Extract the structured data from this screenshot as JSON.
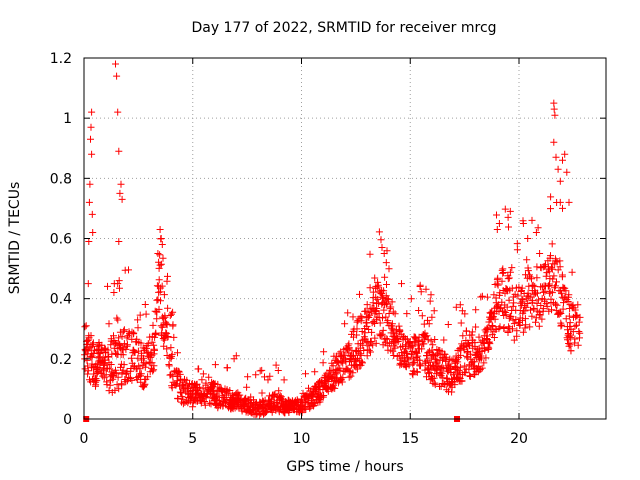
{
  "chart_data": {
    "type": "scatter",
    "title": "Day 177 of 2022, SRMTID for receiver mrcg",
    "xlabel": "GPS time / hours",
    "ylabel": "SRMTID / TECUs",
    "xlim": [
      0,
      24
    ],
    "ylim": [
      0,
      1.2
    ],
    "xticks": [
      0,
      5,
      10,
      15,
      20
    ],
    "xtick_labels": [
      "0",
      "5",
      "10",
      "15",
      "20"
    ],
    "yticks": [
      0,
      0.2,
      0.4,
      0.6,
      0.8,
      1,
      1.2
    ],
    "ytick_labels": [
      "0",
      "0.2",
      "0.4",
      "0.6",
      "0.8",
      "1",
      "1.2"
    ],
    "grid": true,
    "marker": "+",
    "color": "#ff0000",
    "gap_markers_x": [
      0.1,
      17.15
    ],
    "envelope": [
      [
        0.0,
        0.12,
        0.24,
        0.2
      ],
      [
        0.3,
        0.12,
        0.3,
        0.45
      ],
      [
        0.5,
        0.1,
        0.26,
        0.3
      ],
      [
        0.8,
        0.14,
        0.25,
        0.2
      ],
      [
        1.1,
        0.1,
        0.24,
        0.2
      ],
      [
        1.3,
        0.06,
        0.28,
        0.3
      ],
      [
        1.6,
        0.1,
        0.3,
        0.25
      ],
      [
        2.0,
        0.12,
        0.3,
        0.2
      ],
      [
        2.4,
        0.12,
        0.28,
        0.2
      ],
      [
        2.8,
        0.1,
        0.24,
        0.2
      ],
      [
        3.2,
        0.16,
        0.32,
        0.2
      ],
      [
        3.5,
        0.28,
        0.55,
        0.2
      ],
      [
        3.8,
        0.2,
        0.35,
        0.15
      ],
      [
        4.1,
        0.08,
        0.2,
        0.15
      ],
      [
        4.5,
        0.05,
        0.14,
        0.1
      ],
      [
        5.0,
        0.04,
        0.12,
        0.1
      ],
      [
        5.5,
        0.04,
        0.13,
        0.1
      ],
      [
        6.0,
        0.04,
        0.12,
        0.1
      ],
      [
        6.5,
        0.03,
        0.1,
        0.1
      ],
      [
        7.0,
        0.03,
        0.09,
        0.1
      ],
      [
        7.5,
        0.02,
        0.07,
        0.1
      ],
      [
        8.0,
        0.01,
        0.06,
        0.1
      ],
      [
        8.5,
        0.02,
        0.08,
        0.1
      ],
      [
        9.0,
        0.02,
        0.08,
        0.1
      ],
      [
        9.5,
        0.02,
        0.06,
        0.1
      ],
      [
        10.0,
        0.02,
        0.07,
        0.1
      ],
      [
        10.5,
        0.04,
        0.1,
        0.1
      ],
      [
        11.0,
        0.06,
        0.14,
        0.1
      ],
      [
        11.5,
        0.1,
        0.2,
        0.1
      ],
      [
        12.0,
        0.12,
        0.24,
        0.1
      ],
      [
        12.5,
        0.16,
        0.32,
        0.1
      ],
      [
        13.0,
        0.2,
        0.38,
        0.15
      ],
      [
        13.5,
        0.26,
        0.46,
        0.2
      ],
      [
        14.0,
        0.22,
        0.4,
        0.15
      ],
      [
        14.5,
        0.18,
        0.32,
        0.15
      ],
      [
        15.0,
        0.14,
        0.26,
        0.15
      ],
      [
        15.5,
        0.16,
        0.3,
        0.15
      ],
      [
        16.0,
        0.12,
        0.26,
        0.15
      ],
      [
        16.5,
        0.1,
        0.22,
        0.15
      ],
      [
        17.0,
        0.08,
        0.2,
        0.15
      ],
      [
        17.5,
        0.14,
        0.3,
        0.15
      ],
      [
        18.0,
        0.14,
        0.26,
        0.15
      ],
      [
        18.5,
        0.18,
        0.3,
        0.15
      ],
      [
        19.0,
        0.3,
        0.5,
        0.2
      ],
      [
        19.5,
        0.28,
        0.5,
        0.2
      ],
      [
        20.0,
        0.24,
        0.44,
        0.2
      ],
      [
        20.5,
        0.3,
        0.52,
        0.2
      ],
      [
        21.0,
        0.3,
        0.5,
        0.2
      ],
      [
        21.5,
        0.36,
        0.6,
        0.25
      ],
      [
        22.0,
        0.3,
        0.52,
        0.25
      ],
      [
        22.4,
        0.22,
        0.38,
        0.2
      ],
      [
        22.8,
        0.24,
        0.38,
        0.15
      ]
    ],
    "outliers": [
      [
        0.1,
        0.31
      ],
      [
        0.15,
        0.26
      ],
      [
        0.2,
        0.45
      ],
      [
        0.22,
        0.59
      ],
      [
        0.25,
        0.72
      ],
      [
        0.27,
        0.78
      ],
      [
        0.3,
        0.93
      ],
      [
        0.32,
        0.97
      ],
      [
        0.35,
        1.02
      ],
      [
        0.35,
        0.88
      ],
      [
        0.38,
        0.68
      ],
      [
        0.4,
        0.62
      ],
      [
        1.45,
        1.18
      ],
      [
        1.5,
        1.14
      ],
      [
        1.55,
        1.02
      ],
      [
        1.6,
        0.89
      ],
      [
        1.65,
        0.75
      ],
      [
        1.7,
        0.78
      ],
      [
        1.75,
        0.73
      ],
      [
        1.6,
        0.59
      ],
      [
        1.55,
        0.45
      ],
      [
        1.62,
        0.46
      ],
      [
        3.5,
        0.63
      ],
      [
        3.55,
        0.6
      ],
      [
        3.6,
        0.58
      ],
      [
        3.4,
        0.55
      ],
      [
        6.9,
        0.2
      ],
      [
        7.0,
        0.21
      ],
      [
        8.1,
        0.16
      ],
      [
        8.3,
        0.14
      ],
      [
        9.2,
        0.13
      ],
      [
        13.7,
        0.57
      ],
      [
        13.8,
        0.55
      ],
      [
        13.9,
        0.52
      ],
      [
        14.6,
        0.45
      ],
      [
        16.1,
        0.36
      ],
      [
        17.3,
        0.38
      ],
      [
        17.4,
        0.36
      ],
      [
        19.0,
        0.63
      ],
      [
        19.1,
        0.65
      ],
      [
        19.5,
        0.67
      ],
      [
        19.6,
        0.69
      ],
      [
        20.2,
        0.65
      ],
      [
        20.4,
        0.6
      ],
      [
        20.6,
        0.66
      ],
      [
        20.8,
        0.62
      ],
      [
        21.6,
        1.05
      ],
      [
        21.62,
        1.03
      ],
      [
        21.65,
        1.01
      ],
      [
        21.6,
        0.92
      ],
      [
        21.7,
        0.87
      ],
      [
        21.8,
        0.83
      ],
      [
        21.9,
        0.79
      ],
      [
        22.0,
        0.86
      ],
      [
        22.1,
        0.88
      ],
      [
        22.2,
        0.82
      ],
      [
        22.3,
        0.72
      ],
      [
        21.9,
        0.72
      ],
      [
        22.0,
        0.7
      ]
    ]
  }
}
